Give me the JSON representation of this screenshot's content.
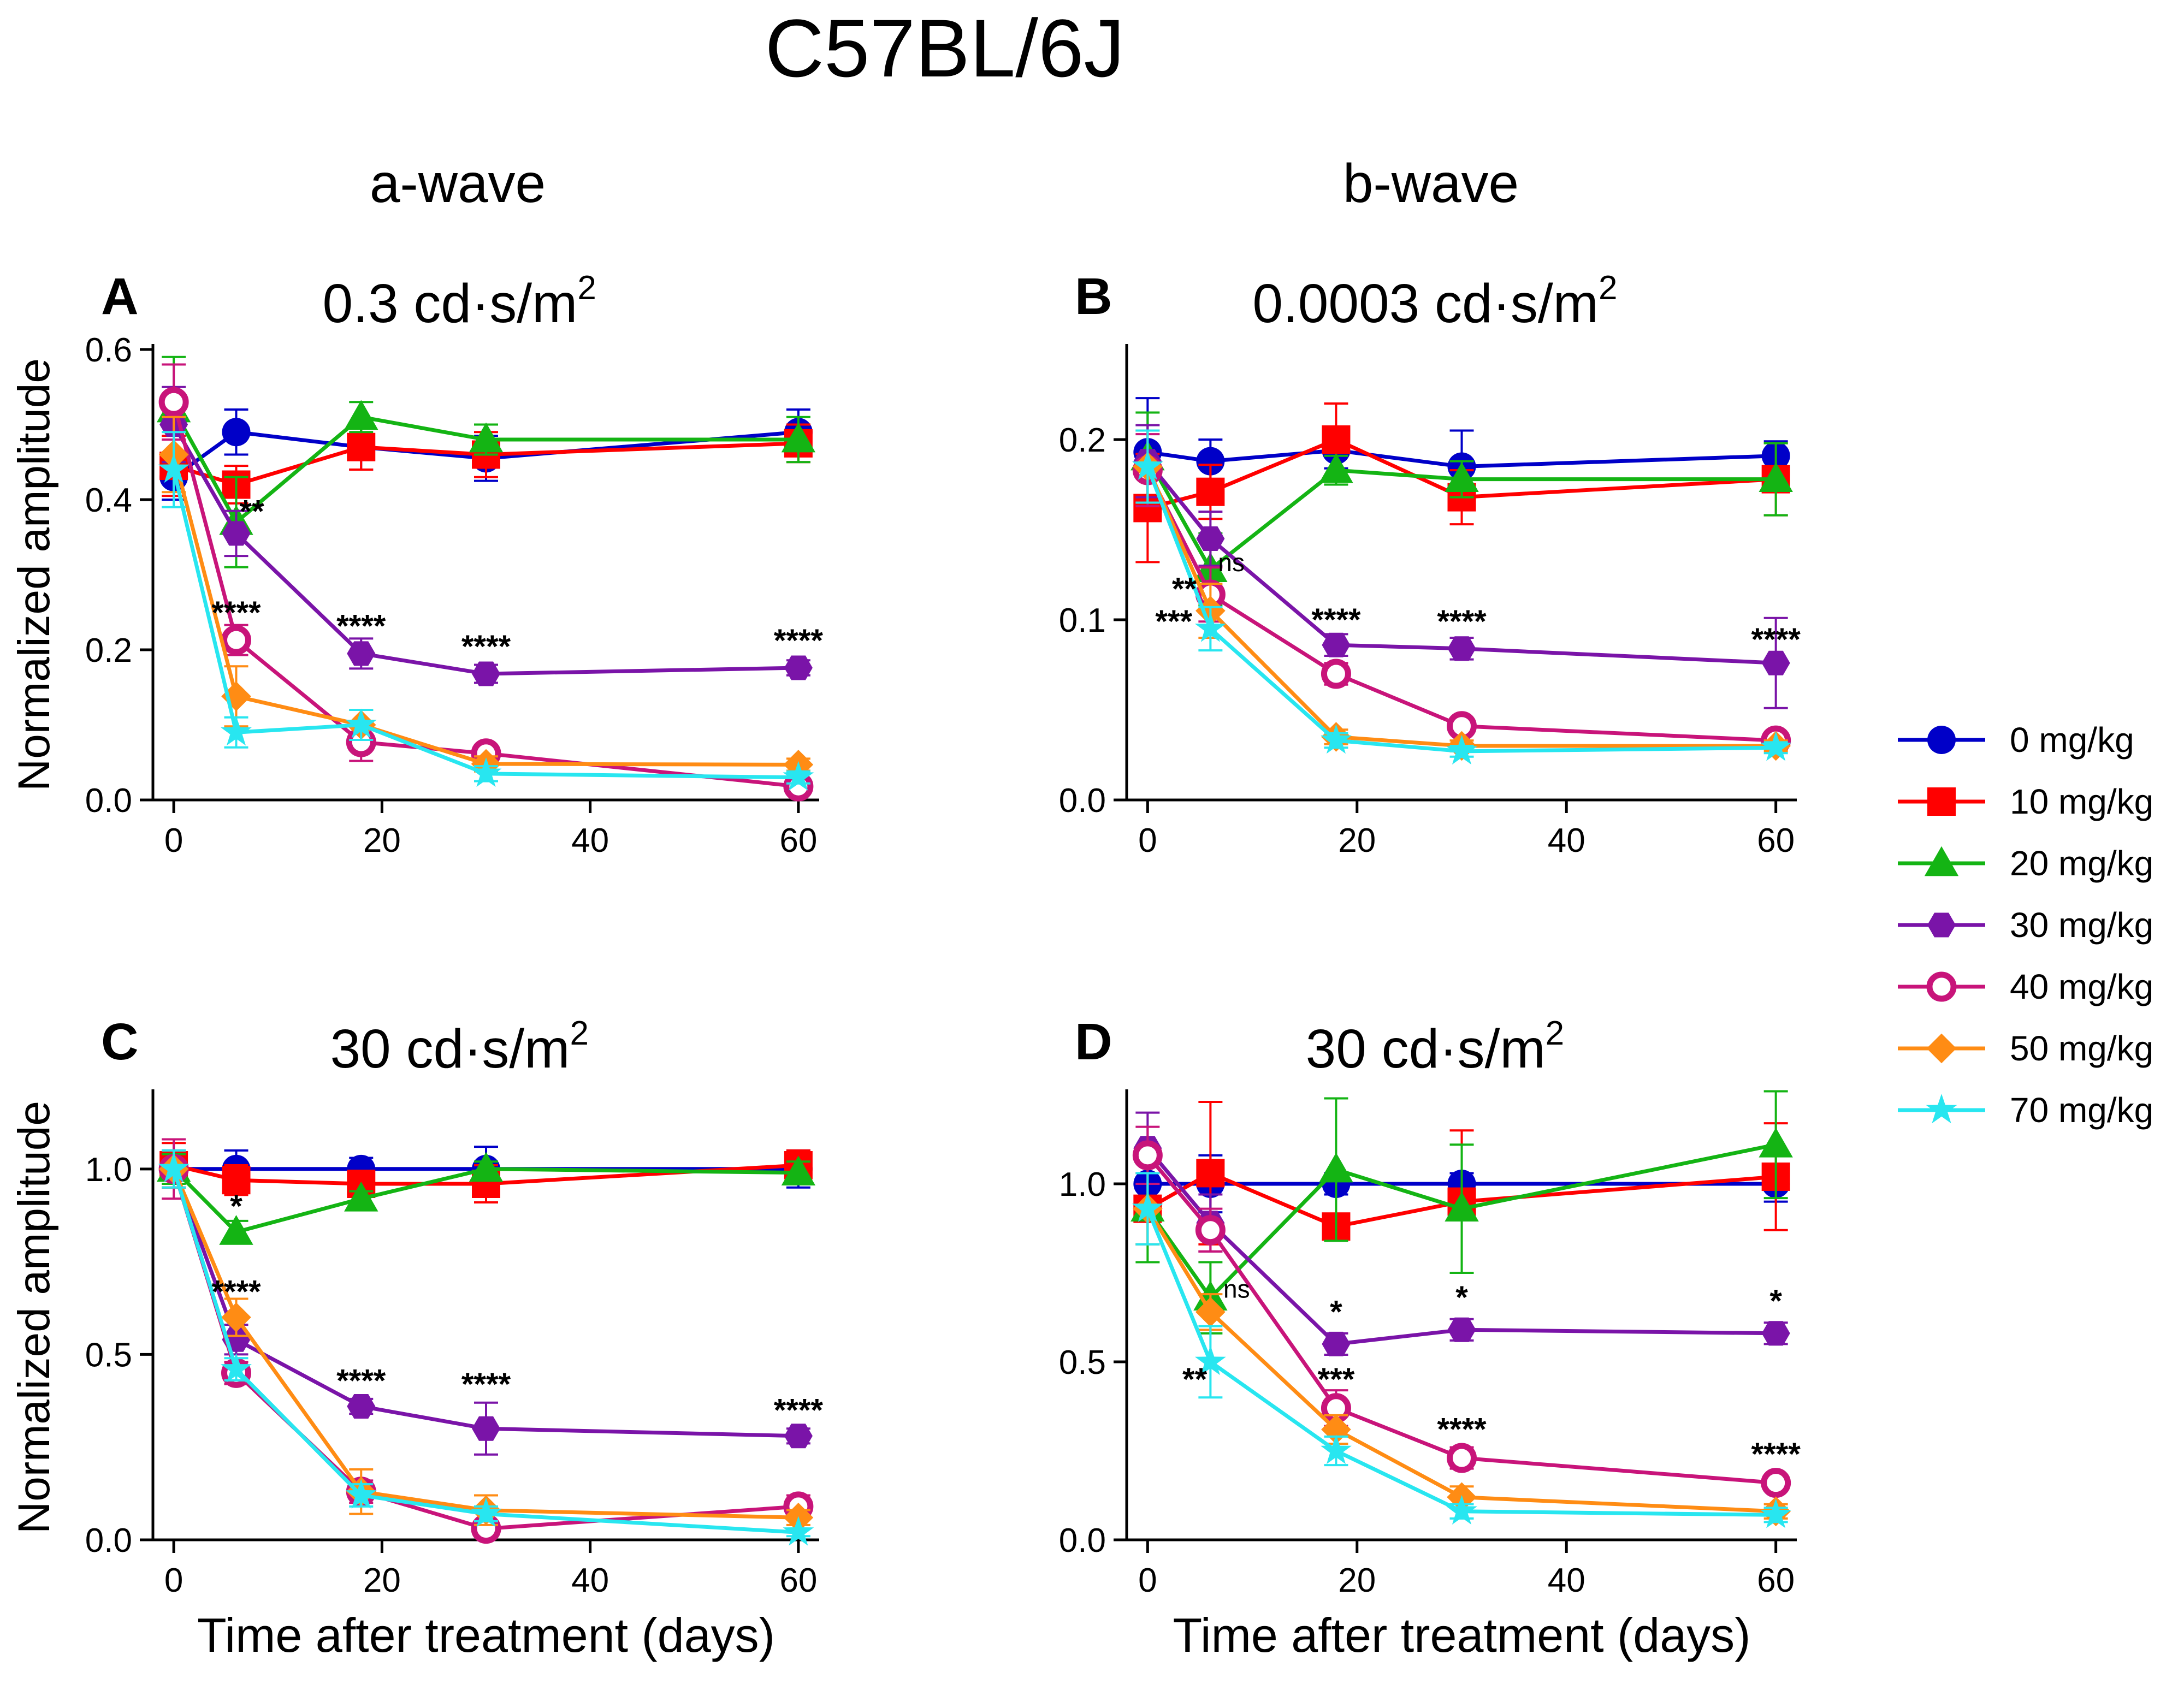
{
  "figure_title": "C57BL/6J",
  "column_titles": [
    "a-wave",
    "b-wave"
  ],
  "legend": [
    {
      "label": "0 mg/kg",
      "color": "#0000c8",
      "marker": "circle"
    },
    {
      "label": "10 mg/kg",
      "color": "#ff0000",
      "marker": "square"
    },
    {
      "label": "20 mg/kg",
      "color": "#14b414",
      "marker": "triangle"
    },
    {
      "label": "30 mg/kg",
      "color": "#7a14a8",
      "marker": "hexagon"
    },
    {
      "label": "40 mg/kg",
      "color": "#c8147a",
      "marker": "open-circle"
    },
    {
      "label": "50 mg/kg",
      "color": "#ff8c14",
      "marker": "diamond"
    },
    {
      "label": "70 mg/kg",
      "color": "#28e6f0",
      "marker": "star"
    }
  ],
  "chart_data": [
    {
      "panel": "A",
      "type": "line",
      "title_base": "0.3 cd·s/m",
      "title_sup": "2",
      "xlabel": "",
      "ylabel": "Normalized amplitude",
      "xlim": [
        -2,
        62
      ],
      "ylim": [
        0,
        0.6
      ],
      "xticks": [
        0,
        20,
        40,
        60
      ],
      "xticklabels": [
        "0",
        "20",
        "40",
        "60"
      ],
      "yticks": [
        0,
        0.2,
        0.4,
        0.6
      ],
      "yticklabels": [
        "0.0",
        "0.2",
        "0.4",
        "0.6"
      ],
      "x": [
        0,
        6,
        18,
        30,
        60
      ],
      "series": [
        {
          "name": "0 mg/kg",
          "values": [
            0.43,
            0.49,
            0.47,
            0.455,
            0.49
          ],
          "err": [
            0.03,
            0.03,
            0.03,
            0.03,
            0.03
          ]
        },
        {
          "name": "10 mg/kg",
          "values": [
            0.445,
            0.42,
            0.47,
            0.46,
            0.475
          ],
          "err": [
            0.04,
            0.025,
            0.03,
            0.03,
            0.025
          ]
        },
        {
          "name": "20 mg/kg",
          "values": [
            0.52,
            0.37,
            0.51,
            0.48,
            0.48
          ],
          "err": [
            0.07,
            0.06,
            0.02,
            0.02,
            0.03
          ]
        },
        {
          "name": "30 mg/kg",
          "values": [
            0.5,
            0.355,
            0.195,
            0.168,
            0.176
          ],
          "err": [
            0.05,
            0.03,
            0.02,
            0.012,
            0.01
          ]
        },
        {
          "name": "40 mg/kg",
          "values": [
            0.53,
            0.213,
            0.077,
            0.062,
            0.018
          ],
          "err": [
            0.05,
            0.02,
            0.025,
            0.01,
            0.008
          ]
        },
        {
          "name": "50 mg/kg",
          "values": [
            0.46,
            0.138,
            0.1,
            0.048,
            0.047
          ],
          "err": [
            0.05,
            0.04,
            0.02,
            0.01,
            0.008
          ]
        },
        {
          "name": "70 mg/kg",
          "values": [
            0.44,
            0.09,
            0.1,
            0.035,
            0.03
          ],
          "err": [
            0.05,
            0.02,
            0.02,
            0.01,
            0.008
          ]
        }
      ],
      "annotations": [
        {
          "text": "**",
          "x": 7.5,
          "y": 0.37
        },
        {
          "text": "****",
          "x": 6,
          "y": 0.235
        },
        {
          "text": "****",
          "x": 18,
          "y": 0.217
        },
        {
          "text": "****",
          "x": 30,
          "y": 0.19
        },
        {
          "text": "****",
          "x": 60,
          "y": 0.198
        }
      ]
    },
    {
      "panel": "B",
      "type": "line",
      "title_base": "0.0003 cd·s/m",
      "title_sup": "2",
      "xlabel": "",
      "ylabel": "",
      "xlim": [
        -2,
        62
      ],
      "ylim": [
        0,
        0.25
      ],
      "xticks": [
        0,
        20,
        40,
        60
      ],
      "xticklabels": [
        "0",
        "20",
        "40",
        "60"
      ],
      "yticks": [
        0,
        0.1,
        0.2
      ],
      "yticklabels": [
        "0.0",
        "0.1",
        "0.2"
      ],
      "x": [
        0,
        6,
        18,
        30,
        60
      ],
      "series": [
        {
          "name": "0 mg/kg",
          "values": [
            0.193,
            0.188,
            0.194,
            0.185,
            0.191
          ],
          "err": [
            0.03,
            0.012,
            0.01,
            0.02,
            0.008
          ]
        },
        {
          "name": "10 mg/kg",
          "values": [
            0.162,
            0.171,
            0.2,
            0.168,
            0.178
          ],
          "err": [
            0.03,
            0.015,
            0.02,
            0.015,
            0.02
          ]
        },
        {
          "name": "20 mg/kg",
          "values": [
            0.19,
            0.128,
            0.183,
            0.178,
            0.178
          ],
          "err": [
            0.025,
            0.02,
            0.008,
            0.01,
            0.02
          ]
        },
        {
          "name": "30 mg/kg",
          "values": [
            0.188,
            0.145,
            0.086,
            0.084,
            0.076
          ],
          "err": [
            0.02,
            0.015,
            0.006,
            0.006,
            0.025
          ]
        },
        {
          "name": "40 mg/kg",
          "values": [
            0.183,
            0.114,
            0.07,
            0.041,
            0.033
          ],
          "err": [
            0.02,
            0.015,
            0.006,
            0.004,
            0.003
          ]
        },
        {
          "name": "50 mg/kg",
          "values": [
            0.185,
            0.105,
            0.035,
            0.03,
            0.03
          ],
          "err": [
            0.02,
            0.015,
            0.004,
            0.003,
            0.003
          ]
        },
        {
          "name": "70 mg/kg",
          "values": [
            0.185,
            0.095,
            0.033,
            0.027,
            0.029
          ],
          "err": [
            0.02,
            0.012,
            0.004,
            0.003,
            0.003
          ]
        }
      ],
      "annotations": [
        {
          "text": "ns",
          "x": 8,
          "y": 0.127
        },
        {
          "text": "**",
          "x": 3.5,
          "y": 0.111
        },
        {
          "text": "***",
          "x": 2.5,
          "y": 0.093
        },
        {
          "text": "****",
          "x": 18,
          "y": 0.094
        },
        {
          "text": "****",
          "x": 30,
          "y": 0.093
        },
        {
          "text": "****",
          "x": 60,
          "y": 0.083
        }
      ]
    },
    {
      "panel": "C",
      "type": "line",
      "title_base": "30 cd·s/m",
      "title_sup": "2",
      "xlabel": "Time after treatment (days)",
      "ylabel": "Normalized amplitude",
      "xlim": [
        -2,
        62
      ],
      "ylim": [
        0,
        1.2
      ],
      "xticks": [
        0,
        20,
        40,
        60
      ],
      "xticklabels": [
        "0",
        "20",
        "40",
        "60"
      ],
      "yticks": [
        0,
        0.5,
        1.0
      ],
      "yticklabels": [
        "0.0",
        "0.5",
        "1.0"
      ],
      "x": [
        0,
        6,
        18,
        30,
        60
      ],
      "series": [
        {
          "name": "0 mg/kg",
          "values": [
            1.0,
            1.0,
            1.0,
            1.0,
            1.0
          ],
          "err": [
            0.05,
            0.05,
            0.03,
            0.06,
            0.05
          ]
        },
        {
          "name": "10 mg/kg",
          "values": [
            1.01,
            0.97,
            0.96,
            0.96,
            1.01
          ],
          "err": [
            0.06,
            0.04,
            0.03,
            0.05,
            0.04
          ]
        },
        {
          "name": "20 mg/kg",
          "values": [
            1.0,
            0.83,
            0.92,
            1.0,
            0.99
          ],
          "err": [
            0.04,
            0.03,
            0.02,
            0.02,
            0.03
          ]
        },
        {
          "name": "30 mg/kg",
          "values": [
            1.0,
            0.54,
            0.36,
            0.3,
            0.28
          ],
          "err": [
            0.05,
            0.04,
            0.02,
            0.07,
            0.02
          ]
        },
        {
          "name": "40 mg/kg",
          "values": [
            1.0,
            0.45,
            0.13,
            0.03,
            0.09
          ],
          "err": [
            0.08,
            0.03,
            0.03,
            0.02,
            0.03
          ]
        },
        {
          "name": "50 mg/kg",
          "values": [
            1.0,
            0.6,
            0.13,
            0.08,
            0.06
          ],
          "err": [
            0.05,
            0.05,
            0.06,
            0.04,
            0.02
          ]
        },
        {
          "name": "70 mg/kg",
          "values": [
            1.0,
            0.46,
            0.12,
            0.07,
            0.02
          ],
          "err": [
            0.05,
            0.03,
            0.03,
            0.02,
            0.01
          ]
        }
      ],
      "annotations": [
        {
          "text": "*",
          "x": 6,
          "y": 0.87
        },
        {
          "text": "****",
          "x": 6,
          "y": 0.64
        },
        {
          "text": "****",
          "x": 18,
          "y": 0.4
        },
        {
          "text": "****",
          "x": 30,
          "y": 0.39
        },
        {
          "text": "****",
          "x": 60,
          "y": 0.32
        }
      ]
    },
    {
      "panel": "D",
      "type": "line",
      "title_base": "30 cd·s/m",
      "title_sup": "2",
      "xlabel": "Time after treatment (days)",
      "ylabel": "",
      "xlim": [
        -2,
        62
      ],
      "ylim": [
        0,
        1.25
      ],
      "xticks": [
        0,
        20,
        40,
        60
      ],
      "xticklabels": [
        "0",
        "20",
        "40",
        "60"
      ],
      "yticks": [
        0,
        0.5,
        1.0
      ],
      "yticklabels": [
        "0.0",
        "0.5",
        "1.0"
      ],
      "x": [
        0,
        6,
        18,
        30,
        60
      ],
      "series": [
        {
          "name": "0 mg/kg",
          "values": [
            1.0,
            1.0,
            1.0,
            1.0,
            1.0
          ],
          "err": [
            0.08,
            0.08,
            0.03,
            0.03,
            0.05
          ]
        },
        {
          "name": "10 mg/kg",
          "values": [
            0.93,
            1.03,
            0.88,
            0.95,
            1.02
          ],
          "err": [
            0.1,
            0.2,
            0.03,
            0.2,
            0.15
          ]
        },
        {
          "name": "20 mg/kg",
          "values": [
            0.93,
            0.68,
            1.04,
            0.93,
            1.11
          ],
          "err": [
            0.15,
            0.1,
            0.2,
            0.18,
            0.15
          ]
        },
        {
          "name": "30 mg/kg",
          "values": [
            1.1,
            0.89,
            0.55,
            0.59,
            0.58
          ],
          "err": [
            0.1,
            0.08,
            0.03,
            0.03,
            0.03
          ]
        },
        {
          "name": "40 mg/kg",
          "values": [
            1.08,
            0.87,
            0.37,
            0.23,
            0.16
          ],
          "err": [
            0.08,
            0.06,
            0.05,
            0.03,
            0.02
          ]
        },
        {
          "name": "50 mg/kg",
          "values": [
            0.93,
            0.64,
            0.31,
            0.12,
            0.08
          ],
          "err": [
            0.1,
            0.05,
            0.04,
            0.03,
            0.02
          ]
        },
        {
          "name": "70 mg/kg",
          "values": [
            0.93,
            0.5,
            0.25,
            0.08,
            0.07
          ],
          "err": [
            0.1,
            0.1,
            0.04,
            0.02,
            0.02
          ]
        }
      ],
      "annotations": [
        {
          "text": "ns",
          "x": 8.5,
          "y": 0.68
        },
        {
          "text": "*",
          "x": 18,
          "y": 0.61
        },
        {
          "text": "*",
          "x": 30,
          "y": 0.65
        },
        {
          "text": "*",
          "x": 60,
          "y": 0.64
        },
        {
          "text": "**",
          "x": 4.5,
          "y": 0.42
        },
        {
          "text": "***",
          "x": 18,
          "y": 0.42
        },
        {
          "text": "****",
          "x": 30,
          "y": 0.28
        },
        {
          "text": "****",
          "x": 60,
          "y": 0.21
        }
      ]
    }
  ]
}
